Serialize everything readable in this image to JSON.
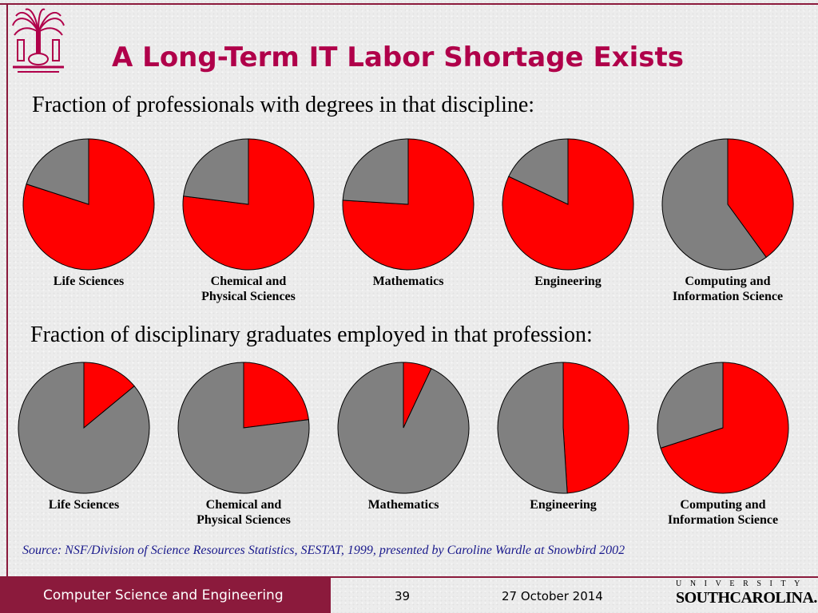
{
  "title": "A Long-Term IT Labor Shortage Exists",
  "logo": {
    "icon": "palmetto-tree-seal-icon",
    "color": "#b0004a"
  },
  "colors": {
    "accent": "#b0004a",
    "footer": "#8b1a3c",
    "pie_red": "#ff0000",
    "pie_gray": "#808080"
  },
  "section1": {
    "subtitle": "Fraction of professionals with degrees in that discipline:"
  },
  "section2": {
    "subtitle": "Fraction of disciplinary graduates employed in that profession:"
  },
  "chart_data": [
    {
      "type": "pie",
      "title": "Fraction of professionals with degrees in that discipline:",
      "series_colors": {
        "red": "#ff0000",
        "gray": "#808080"
      },
      "pies": [
        {
          "label": "Life Sciences",
          "label_lines": [
            "Life Sciences"
          ],
          "red_fraction": 0.8
        },
        {
          "label": "Chemical and Physical Sciences",
          "label_lines": [
            "Chemical and",
            "Physical Sciences"
          ],
          "red_fraction": 0.77
        },
        {
          "label": "Mathematics",
          "label_lines": [
            "Mathematics"
          ],
          "red_fraction": 0.76
        },
        {
          "label": "Engineering",
          "label_lines": [
            "Engineering"
          ],
          "red_fraction": 0.82
        },
        {
          "label": "Computing and Information Science",
          "label_lines": [
            "Computing and",
            "Information Science"
          ],
          "red_fraction": 0.4
        }
      ]
    },
    {
      "type": "pie",
      "title": "Fraction of disciplinary graduates employed in that profession:",
      "series_colors": {
        "red": "#ff0000",
        "gray": "#808080"
      },
      "pies": [
        {
          "label": "Life Sciences",
          "label_lines": [
            "Life Sciences"
          ],
          "red_fraction": 0.14
        },
        {
          "label": "Chemical and Physical Sciences",
          "label_lines": [
            "Chemical and",
            "Physical Sciences"
          ],
          "red_fraction": 0.23
        },
        {
          "label": "Mathematics",
          "label_lines": [
            "Mathematics"
          ],
          "red_fraction": 0.07
        },
        {
          "label": "Engineering",
          "label_lines": [
            "Engineering"
          ],
          "red_fraction": 0.49
        },
        {
          "label": "Computing and Information Science",
          "label_lines": [
            "Computing and",
            "Information Science"
          ],
          "red_fraction": 0.7
        }
      ]
    }
  ],
  "source": "Source: NSF/Division of Science Resources Statistics, SESTAT, 1999, presented by Caroline Wardle at Snowbird 2002",
  "footer": {
    "department": "Computer Science and Engineering",
    "page": "39",
    "date": "27 October 2014",
    "university_top": "UNIVERSITY OF",
    "university_name": "SOUTHCAROLINA."
  }
}
